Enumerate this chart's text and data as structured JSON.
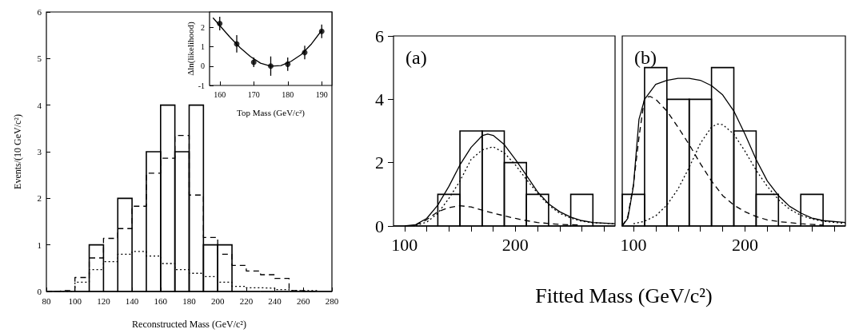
{
  "chart_data": [
    {
      "type": "histogram",
      "xlabel": "Reconstructed Mass (GeV/c²)",
      "ylabel": "Events/(10 GeV/c²)",
      "bins": [
        80,
        90,
        100,
        110,
        120,
        130,
        140,
        150,
        160,
        170,
        180,
        190,
        200,
        210,
        220,
        230,
        240,
        250,
        260,
        270,
        280
      ],
      "values": [
        0,
        0,
        0,
        1,
        0,
        2,
        0,
        3,
        4,
        3,
        4,
        1,
        1,
        0,
        0,
        0,
        0,
        0,
        0,
        0
      ],
      "color": "#000000",
      "line_style": "solid",
      "xlim": [
        80,
        280
      ],
      "xticks": [
        80,
        100,
        120,
        140,
        160,
        180,
        200,
        220,
        240,
        260,
        280
      ],
      "ylim": [
        0,
        6
      ],
      "yticks": [
        0,
        1,
        2,
        3,
        4,
        5,
        6
      ],
      "grid": false,
      "series": [
        {
          "type": "step",
          "color": "#000000",
          "line_style": "dashed",
          "x": [
            80,
            90,
            100,
            110,
            120,
            130,
            140,
            150,
            160,
            170,
            180,
            190,
            200,
            210,
            220,
            230,
            240,
            250,
            260,
            270
          ],
          "values": [
            0,
            0.02,
            0.3,
            0.72,
            1.14,
            1.35,
            1.83,
            2.54,
            2.86,
            3.35,
            2.07,
            1.16,
            0.8,
            0.56,
            0.44,
            0.36,
            0.28,
            0.02,
            0,
            0
          ]
        },
        {
          "type": "step",
          "color": "#000000",
          "line_style": "dotted",
          "x": [
            80,
            90,
            100,
            110,
            120,
            130,
            140,
            150,
            160,
            170,
            180,
            190,
            200,
            210,
            220,
            230,
            240,
            250,
            260,
            270
          ],
          "values": [
            0,
            0,
            0.2,
            0.47,
            0.64,
            0.8,
            0.86,
            0.76,
            0.6,
            0.47,
            0.39,
            0.32,
            0.2,
            0.11,
            0.08,
            0.07,
            0.04,
            0.02,
            0.02,
            0
          ]
        }
      ]
    },
    {
      "type": "scatter",
      "xlabel": "Top Mass (GeV/c²)",
      "ylabel": "Δln(likelihood)",
      "x": [
        160,
        165,
        170,
        175,
        180,
        185,
        190
      ],
      "values": [
        2.2,
        1.15,
        0.2,
        0,
        0.1,
        0.7,
        1.8
      ],
      "errors": [
        0.35,
        0.45,
        0.25,
        0.5,
        0.35,
        0.35,
        0.35
      ],
      "color": "#000000",
      "marker": "circle",
      "xlim": [
        157,
        193
      ],
      "xticks": [
        160,
        170,
        180,
        190
      ],
      "ylim": [
        -1,
        2.8
      ],
      "yticks": [
        -1,
        0,
        1,
        2
      ],
      "grid": false,
      "series": [
        {
          "type": "line",
          "color": "#000000",
          "line_style": "solid",
          "marker": "none",
          "x": [
            158,
            160,
            163,
            166,
            169,
            172,
            175,
            178,
            181,
            184,
            187,
            190
          ],
          "values": [
            2.5,
            2.1,
            1.5,
            0.95,
            0.5,
            0.15,
            0,
            0.03,
            0.25,
            0.6,
            1.15,
            1.85
          ]
        }
      ]
    },
    {
      "type": "histogram",
      "title": "(a)",
      "xlabel": "Fitted Mass (GeV/c²)",
      "bins": [
        90,
        110,
        130,
        150,
        170,
        190,
        210,
        230,
        250,
        270,
        290
      ],
      "values": [
        0,
        0,
        1,
        3,
        3,
        2,
        1,
        0,
        1,
        0
      ],
      "color": "#000000",
      "line_style": "solid",
      "xlim": [
        90,
        290
      ],
      "xticks": [
        100,
        {
          "value": 120,
          "label": null
        },
        {
          "value": 140,
          "label": null
        },
        {
          "value": 160,
          "label": null
        },
        {
          "value": 180,
          "label": null
        },
        200,
        {
          "value": 220,
          "label": null
        },
        {
          "value": 240,
          "label": null
        },
        {
          "value": 260,
          "label": null
        },
        {
          "value": 280,
          "label": null
        }
      ],
      "ylim": [
        0,
        6
      ],
      "yticks": [
        0,
        2,
        4,
        6
      ],
      "grid": false,
      "series": [
        {
          "type": "line",
          "color": "#000000",
          "line_style": "solid",
          "marker": "none",
          "x": [
            100,
            110,
            120,
            130,
            140,
            150,
            160,
            170,
            175,
            180,
            190,
            200,
            210,
            220,
            230,
            240,
            250,
            260,
            270,
            290
          ],
          "values": [
            0,
            0.04,
            0.24,
            0.66,
            1.25,
            1.93,
            2.48,
            2.85,
            2.9,
            2.86,
            2.57,
            2.1,
            1.6,
            1.08,
            0.7,
            0.45,
            0.28,
            0.17,
            0.11,
            0.07
          ]
        },
        {
          "type": "line",
          "color": "#000000",
          "line_style": "dotted",
          "marker": "none",
          "x": [
            110,
            120,
            130,
            140,
            150,
            160,
            170,
            180,
            190,
            200,
            210,
            220,
            230,
            240,
            250,
            260,
            270,
            290
          ],
          "values": [
            0.02,
            0.12,
            0.4,
            0.87,
            1.42,
            2.1,
            2.4,
            2.5,
            2.31,
            1.93,
            1.47,
            1.04,
            0.66,
            0.4,
            0.25,
            0.15,
            0.1,
            0.07
          ]
        },
        {
          "type": "line",
          "color": "#000000",
          "line_style": "dashed",
          "marker": "none",
          "x": [
            110,
            120,
            130,
            140,
            150,
            160,
            170,
            180,
            190,
            200,
            210,
            220,
            230,
            240,
            260
          ],
          "values": [
            0.03,
            0.2,
            0.45,
            0.58,
            0.64,
            0.6,
            0.5,
            0.41,
            0.32,
            0.24,
            0.17,
            0.11,
            0.08,
            0.05,
            0.03
          ]
        }
      ]
    },
    {
      "type": "histogram",
      "title": "(b)",
      "bins": [
        90,
        110,
        130,
        150,
        170,
        190,
        210,
        230,
        250,
        270,
        290
      ],
      "values": [
        1,
        5,
        4,
        4,
        5,
        3,
        1,
        0,
        1,
        0
      ],
      "color": "#000000",
      "line_style": "solid",
      "xlim": [
        90,
        290
      ],
      "xticks": [
        100,
        {
          "value": 120,
          "label": null
        },
        {
          "value": 140,
          "label": null
        },
        {
          "value": 160,
          "label": null
        },
        {
          "value": 180,
          "label": null
        },
        200,
        {
          "value": 220,
          "label": null
        },
        {
          "value": 240,
          "label": null
        },
        {
          "value": 260,
          "label": null
        },
        {
          "value": 280,
          "label": null
        }
      ],
      "ylim": [
        0,
        6
      ],
      "yticks": [
        0,
        2,
        4,
        6
      ],
      "tick_labels": "x",
      "grid": false,
      "series": [
        {
          "type": "line",
          "color": "#000000",
          "line_style": "solid",
          "marker": "none",
          "x": [
            90,
            95,
            100,
            105,
            110,
            120,
            130,
            140,
            150,
            160,
            170,
            180,
            190,
            200,
            210,
            220,
            230,
            240,
            250,
            260,
            270,
            290
          ],
          "values": [
            0,
            0.24,
            1.25,
            3.37,
            4,
            4.47,
            4.6,
            4.66,
            4.66,
            4.6,
            4.43,
            4.14,
            3.63,
            2.9,
            2.1,
            1.42,
            0.96,
            0.62,
            0.41,
            0.25,
            0.17,
            0.11
          ]
        },
        {
          "type": "line",
          "color": "#000000",
          "line_style": "dashed",
          "marker": "none",
          "x": [
            90,
            95,
            100,
            105,
            110,
            115,
            120,
            130,
            140,
            150,
            160,
            170,
            180,
            190,
            200,
            210,
            220,
            230,
            250,
            270
          ],
          "values": [
            0,
            0.3,
            1.3,
            2.8,
            4.05,
            4.09,
            4,
            3.63,
            3.12,
            2.57,
            1.97,
            1.42,
            0.96,
            0.66,
            0.45,
            0.3,
            0.19,
            0.14,
            0.07,
            0.03
          ]
        },
        {
          "type": "line",
          "color": "#000000",
          "line_style": "dotted",
          "marker": "none",
          "x": [
            100,
            110,
            120,
            130,
            140,
            150,
            160,
            170,
            175,
            180,
            190,
            200,
            210,
            220,
            230,
            240,
            250,
            260,
            270,
            290
          ],
          "values": [
            0.07,
            0.15,
            0.32,
            0.66,
            1.17,
            1.85,
            2.61,
            3.12,
            3.22,
            3.2,
            2.9,
            2.36,
            1.76,
            1.25,
            0.83,
            0.53,
            0.34,
            0.22,
            0.15,
            0.08
          ]
        }
      ]
    }
  ]
}
